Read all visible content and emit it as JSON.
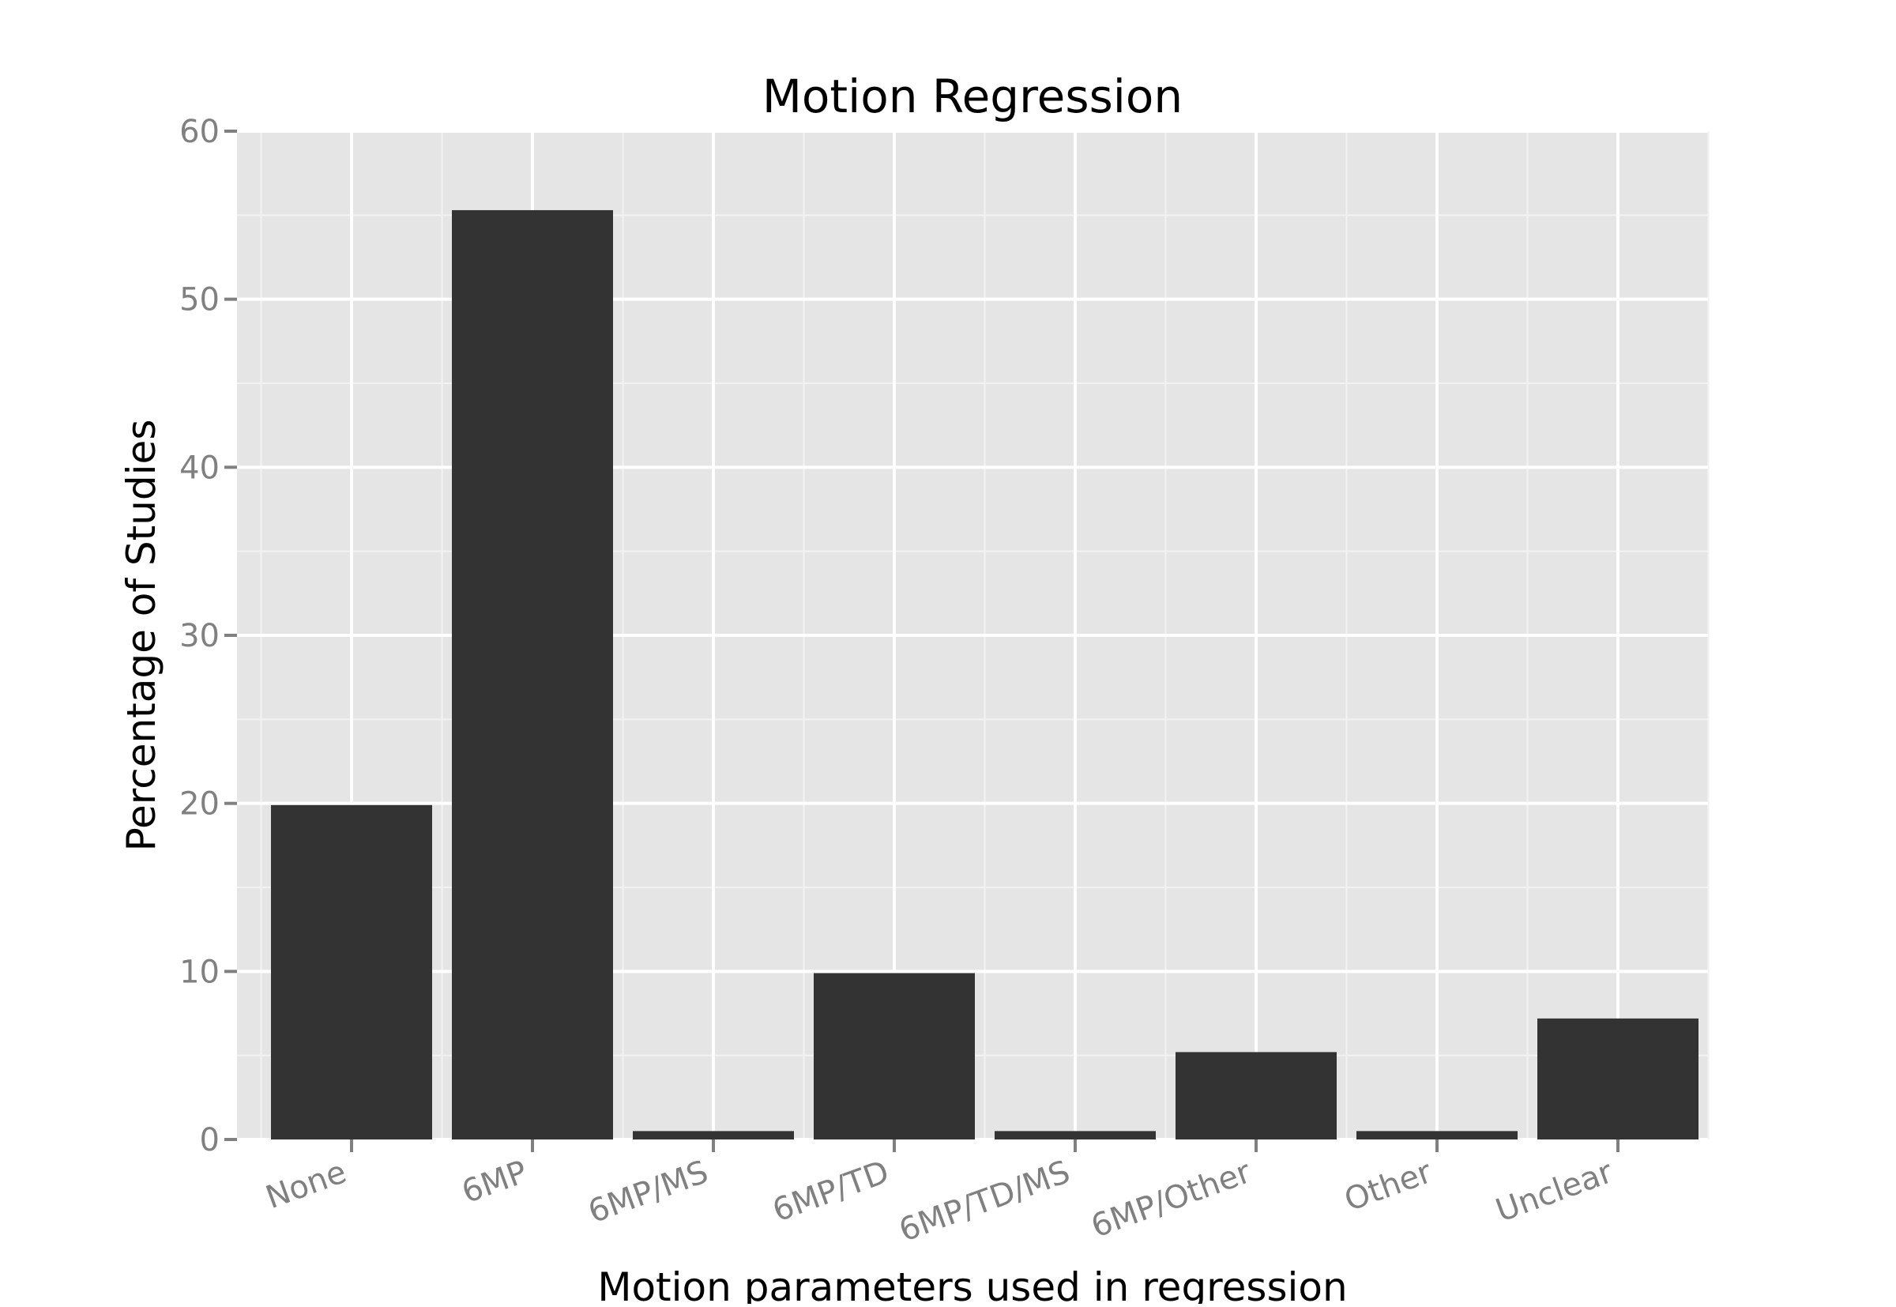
{
  "chart_data": {
    "type": "bar",
    "title": "Motion Regression",
    "xlabel": "Motion parameters used in regression",
    "ylabel": "Percentage of Studies",
    "categories": [
      "None",
      "6MP",
      "6MP/MS",
      "6MP/TD",
      "6MP/TD/MS",
      "6MP/Other",
      "Other",
      "Unclear"
    ],
    "values": [
      19.9,
      55.3,
      0.5,
      9.9,
      0.5,
      5.2,
      0.5,
      7.2
    ],
    "ylim": [
      0,
      60
    ],
    "yticks": [
      0,
      10,
      20,
      30,
      40,
      50,
      60
    ],
    "grid": true,
    "legend": "none",
    "colors": {
      "bar": "#333333",
      "panel": "#e5e5e5",
      "grid_major": "#ffffff",
      "grid_minor": "#f2f2f2",
      "tick_label": "#808080",
      "text": "#000000"
    }
  }
}
